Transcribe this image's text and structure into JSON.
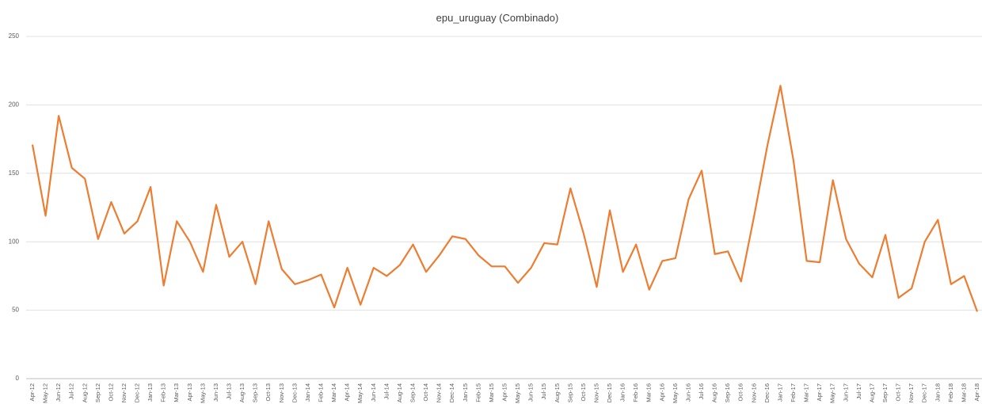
{
  "chart_data": {
    "type": "line",
    "title": "epu_uruguay (Combinado)",
    "categories": [
      "Apr-12",
      "May-12",
      "Jun-12",
      "Jul-12",
      "Aug-12",
      "Sep-12",
      "Oct-12",
      "Nov-12",
      "Dec-12",
      "Jan-13",
      "Feb-13",
      "Mar-13",
      "Apr-13",
      "May-13",
      "Jun-13",
      "Jul-13",
      "Aug-13",
      "Sep-13",
      "Oct-13",
      "Nov-13",
      "Dec-13",
      "Jan-14",
      "Feb-14",
      "Mar-14",
      "Apr-14",
      "May-14",
      "Jun-14",
      "Jul-14",
      "Aug-14",
      "Sep-14",
      "Oct-14",
      "Nov-14",
      "Dec-14",
      "Jan-15",
      "Feb-15",
      "Mar-15",
      "Apr-15",
      "May-15",
      "Jun-15",
      "Jul-15",
      "Aug-15",
      "Sep-15",
      "Oct-15",
      "Nov-15",
      "Dec-15",
      "Jan-16",
      "Feb-16",
      "Mar-16",
      "Apr-16",
      "May-16",
      "Jun-16",
      "Jul-16",
      "Aug-16",
      "Sep-16",
      "Oct-16",
      "Nov-16",
      "Dec-16",
      "Jan-17",
      "Feb-17",
      "Mar-17",
      "Apr-17",
      "May-17",
      "Jun-17",
      "Jul-17",
      "Aug-17",
      "Sep-17",
      "Oct-17",
      "Nov-17",
      "Dec-17",
      "Jan-18",
      "Feb-18",
      "Mar-18",
      "Apr-18"
    ],
    "series": [
      {
        "name": "epu_uruguay",
        "color": "#ed7d31",
        "values": [
          171,
          119,
          192,
          154,
          146,
          102,
          129,
          106,
          115,
          140,
          68,
          115,
          100,
          78,
          127,
          89,
          100,
          69,
          115,
          80,
          69,
          72,
          76,
          52,
          81,
          54,
          81,
          75,
          83,
          98,
          78,
          90,
          104,
          102,
          90,
          82,
          82,
          70,
          81,
          99,
          98,
          139,
          106,
          67,
          123,
          78,
          98,
          65,
          86,
          88,
          131,
          152,
          91,
          93,
          71,
          119,
          170,
          214,
          159,
          86,
          85,
          145,
          102,
          84,
          74,
          105,
          59,
          66,
          100,
          116,
          69,
          75,
          49
        ]
      }
    ],
    "ylim": [
      0,
      250
    ],
    "yticks": [
      0,
      50,
      100,
      150,
      200,
      250
    ],
    "grid": true
  }
}
